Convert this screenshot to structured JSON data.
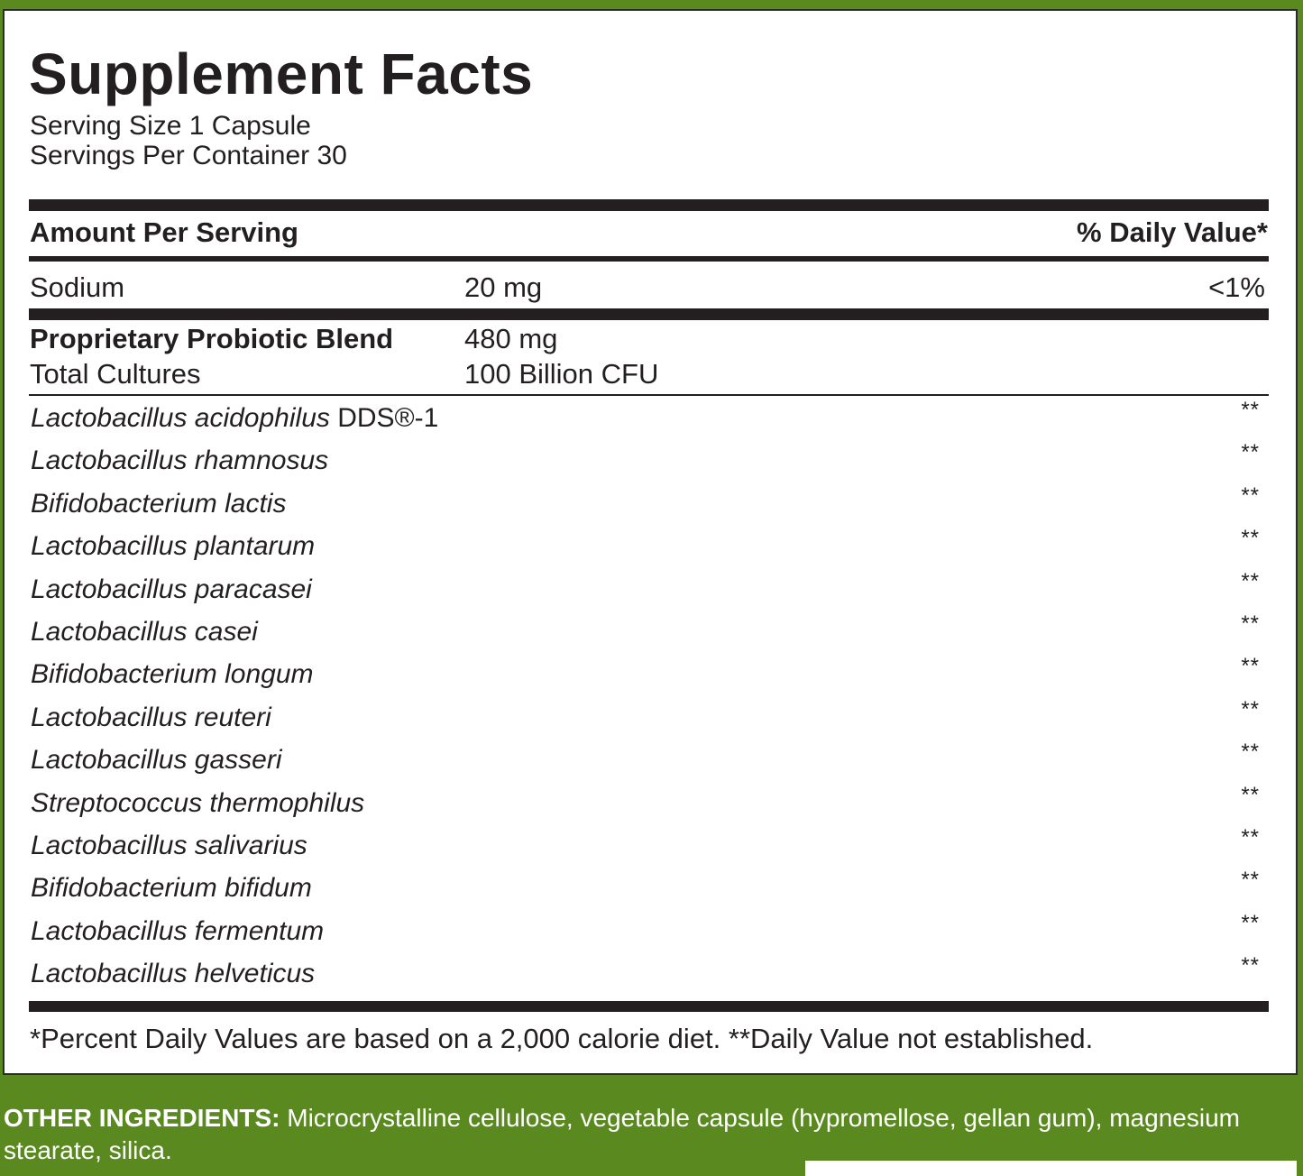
{
  "title": "Supplement Facts",
  "serving_size": "Serving Size 1 Capsule",
  "servings_per_container": "Servings Per Container 30",
  "header": {
    "amount": "Amount Per Serving",
    "daily_value": "% Daily Value*"
  },
  "sodium": {
    "name": "Sodium",
    "amount": "20 mg",
    "daily_value": "<1%"
  },
  "blend": {
    "name": "Proprietary Probiotic Blend",
    "amount": "480 mg",
    "sub_name": "Total Cultures",
    "sub_amount": "100 Billion CFU"
  },
  "strains": [
    {
      "name": "Lactobacillus acidophilus",
      "suffix": "DDS®-1",
      "daily_value": "**"
    },
    {
      "name": "Lactobacillus rhamnosus",
      "daily_value": "**"
    },
    {
      "name": "Bifidobacterium lactis",
      "daily_value": "**"
    },
    {
      "name": "Lactobacillus plantarum",
      "daily_value": "**"
    },
    {
      "name": "Lactobacillus paracasei",
      "daily_value": "**"
    },
    {
      "name": "Lactobacillus casei",
      "daily_value": "**"
    },
    {
      "name": "Bifidobacterium longum",
      "daily_value": "**"
    },
    {
      "name": "Lactobacillus reuteri",
      "daily_value": "**"
    },
    {
      "name": "Lactobacillus gasseri",
      "daily_value": "**"
    },
    {
      "name": "Streptococcus thermophilus",
      "daily_value": "**"
    },
    {
      "name": "Lactobacillus salivarius",
      "daily_value": "**"
    },
    {
      "name": "Bifidobacterium bifidum",
      "daily_value": "**"
    },
    {
      "name": "Lactobacillus fermentum",
      "daily_value": "**"
    },
    {
      "name": "Lactobacillus helveticus",
      "daily_value": "**"
    }
  ],
  "footnote": "*Percent Daily Values are based on a 2,000 calorie diet. **Daily Value not established.",
  "other_ingredients": {
    "label": "OTHER INGREDIENTS:",
    "text": "Microcrystalline cellulose, vegetable capsule (hypromellose, gellan gum), magnesium stearate, silica."
  }
}
